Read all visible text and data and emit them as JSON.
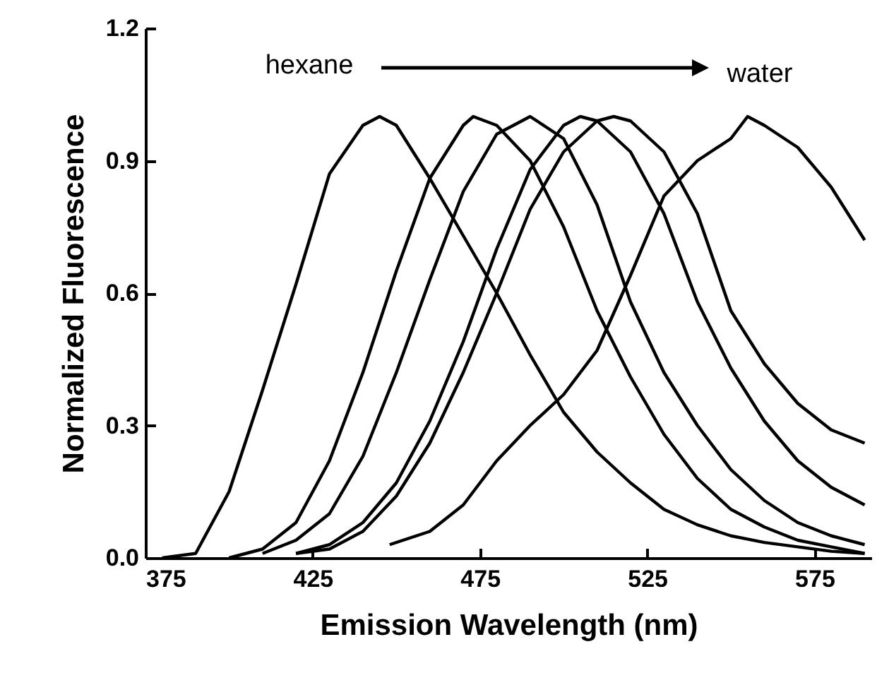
{
  "chart_data": {
    "type": "line",
    "xlabel": "Emission Wavelength (nm)",
    "ylabel": "Normalized Fluorescence",
    "annotations": [
      "hexane",
      "water"
    ],
    "xlim": [
      375,
      592
    ],
    "xticks": [
      375,
      425,
      475,
      525,
      575
    ],
    "ylim": [
      0,
      1.2
    ],
    "yticks": [
      {
        "value": 0,
        "label": "0.0"
      },
      0.3,
      0.6,
      0.9,
      1.2
    ],
    "grid": false,
    "legend": false,
    "marker": "none",
    "line_style": "solid",
    "series": [
      {
        "color": "#000000",
        "x": [
          380,
          390,
          400,
          410,
          420,
          430,
          440,
          445,
          450,
          460,
          470,
          480,
          490,
          500,
          510,
          520,
          530,
          540,
          550,
          560,
          570,
          580,
          590
        ],
        "values": [
          0,
          0.01,
          0.15,
          0.38,
          0.62,
          0.87,
          0.98,
          1.0,
          0.98,
          0.86,
          0.73,
          0.6,
          0.46,
          0.33,
          0.24,
          0.17,
          0.11,
          0.075,
          0.05,
          0.035,
          0.025,
          0.015,
          0.01
        ]
      },
      {
        "color": "#000000",
        "x": [
          400,
          410,
          420,
          430,
          440,
          450,
          460,
          470,
          473,
          480,
          490,
          500,
          510,
          520,
          530,
          540,
          550,
          560,
          570,
          580,
          590
        ],
        "values": [
          0,
          0.02,
          0.08,
          0.22,
          0.42,
          0.65,
          0.86,
          0.98,
          1.0,
          0.98,
          0.9,
          0.75,
          0.56,
          0.41,
          0.28,
          0.18,
          0.11,
          0.07,
          0.04,
          0.025,
          0.01
        ]
      },
      {
        "color": "#000000",
        "x": [
          410,
          420,
          430,
          440,
          450,
          460,
          470,
          480,
          490,
          500,
          510,
          520,
          530,
          540,
          550,
          560,
          570,
          580,
          590
        ],
        "values": [
          0.01,
          0.04,
          0.1,
          0.23,
          0.42,
          0.63,
          0.83,
          0.96,
          1.0,
          0.95,
          0.8,
          0.58,
          0.42,
          0.3,
          0.2,
          0.13,
          0.08,
          0.05,
          0.03
        ]
      },
      {
        "color": "#000000",
        "x": [
          420,
          430,
          440,
          450,
          460,
          470,
          480,
          490,
          500,
          505,
          510,
          520,
          530,
          540,
          550,
          560,
          570,
          580,
          590
        ],
        "values": [
          0.01,
          0.03,
          0.08,
          0.17,
          0.31,
          0.49,
          0.7,
          0.88,
          0.98,
          1.0,
          0.99,
          0.92,
          0.78,
          0.58,
          0.43,
          0.31,
          0.22,
          0.16,
          0.12
        ]
      },
      {
        "color": "#000000",
        "x": [
          420,
          430,
          440,
          450,
          460,
          470,
          480,
          490,
          500,
          510,
          515,
          520,
          530,
          540,
          550,
          560,
          570,
          580,
          590
        ],
        "values": [
          0.01,
          0.02,
          0.06,
          0.14,
          0.26,
          0.42,
          0.6,
          0.79,
          0.92,
          0.99,
          1.0,
          0.99,
          0.92,
          0.78,
          0.56,
          0.44,
          0.35,
          0.29,
          0.26
        ]
      },
      {
        "color": "#000000",
        "x": [
          448,
          460,
          470,
          480,
          490,
          500,
          510,
          520,
          530,
          540,
          550,
          555,
          560,
          570,
          580,
          590
        ],
        "values": [
          0.03,
          0.06,
          0.12,
          0.22,
          0.3,
          0.37,
          0.47,
          0.64,
          0.82,
          0.9,
          0.95,
          1.0,
          0.98,
          0.93,
          0.84,
          0.72
        ]
      }
    ]
  }
}
